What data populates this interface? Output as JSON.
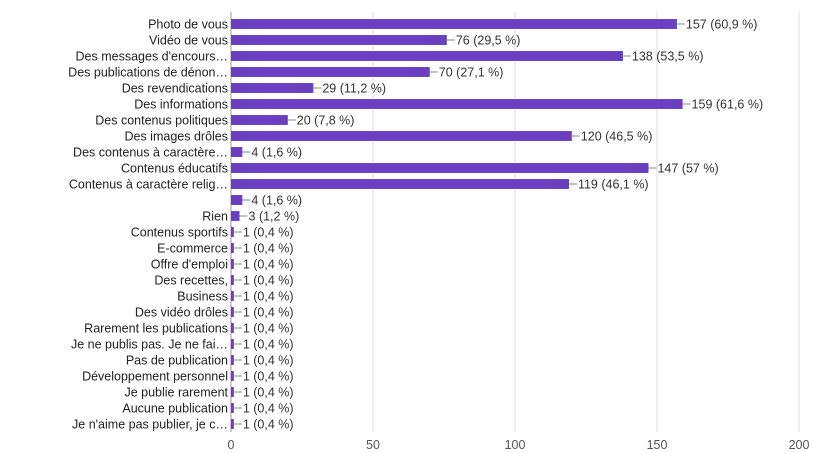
{
  "chart_data": {
    "type": "bar",
    "orientation": "horizontal",
    "categories": [
      "Photo de vous",
      "Vidéo de vous",
      "Des messages d'encours…",
      "Des publications de dénon…",
      "Des revendications",
      "Des informations",
      "Des contenus politiques",
      "Des images drôles",
      "Des contenus à caractère…",
      "Contenus éducatifs",
      "Contenus à caractère relig…",
      "",
      "Rien",
      "Contenus sportifs",
      "E-commerce",
      "Offre d'emploi",
      "Des recettes,",
      "Business",
      "Des vidéo drôles",
      "Rarement les publications",
      "Je ne publis pas. Je ne fai…",
      "Pas de publication",
      "Développement personnel",
      "Je publie rarement",
      "Aucune publication",
      "Je n'aime pas publier, je c…"
    ],
    "values": [
      157,
      76,
      138,
      70,
      29,
      159,
      20,
      120,
      4,
      147,
      119,
      4,
      3,
      1,
      1,
      1,
      1,
      1,
      1,
      1,
      1,
      1,
      1,
      1,
      1,
      1
    ],
    "value_labels": [
      "157 (60,9 %)",
      "76 (29,5 %)",
      "138 (53,5 %)",
      "70 (27,1 %)",
      "29 (11,2 %)",
      "159 (61,6 %)",
      "20 (7,8 %)",
      "120 (46,5 %)",
      "4 (1,6 %)",
      "147 (57 %)",
      "119 (46,1 %)",
      "4 (1,6 %)",
      "3 (1,2 %)",
      "1 (0,4 %)",
      "1 (0,4 %)",
      "1 (0,4 %)",
      "1 (0,4 %)",
      "1 (0,4 %)",
      "1 (0,4 %)",
      "1 (0,4 %)",
      "1 (0,4 %)",
      "1 (0,4 %)",
      "1 (0,4 %)",
      "1 (0,4 %)",
      "1 (0,4 %)",
      "1 (0,4 %)"
    ],
    "xticks": [
      0,
      50,
      100,
      150,
      200
    ],
    "xtick_labels": [
      "0",
      "50",
      "100",
      "150",
      "200"
    ],
    "xlim": [
      0,
      200
    ],
    "title": "",
    "xlabel": "",
    "ylabel": "",
    "grid": true,
    "bar_color": "#6a3fc2",
    "grid_color": "#dddddd"
  }
}
